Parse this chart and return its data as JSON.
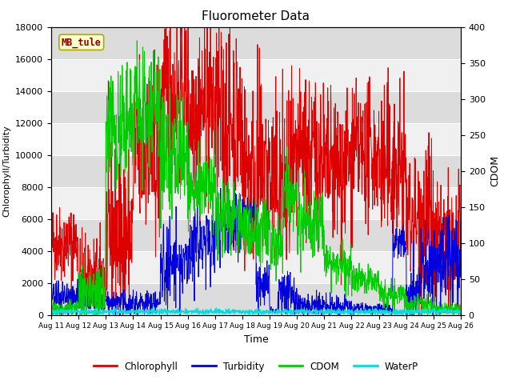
{
  "title": "Fluorometer Data",
  "xlabel": "Time",
  "ylabel_left": "Chlorophyll/Turbidity",
  "ylabel_right": "CDOM",
  "annotation": "MB_tule",
  "ylim_left": [
    0,
    18000
  ],
  "ylim_right": [
    0,
    400
  ],
  "x_tick_labels": [
    "Aug 11",
    "Aug 12",
    "Aug 13",
    "Aug 14",
    "Aug 15",
    "Aug 16",
    "Aug 17",
    "Aug 18",
    "Aug 19",
    "Aug 20",
    "Aug 21",
    "Aug 22",
    "Aug 23",
    "Aug 24",
    "Aug 25",
    "Aug 26"
  ],
  "colors": {
    "chlorophyll": "#dd0000",
    "turbidity": "#0000dd",
    "cdom": "#00cc00",
    "waterp": "#00dddd",
    "background_plot_light": "#f0f0f0",
    "background_plot_dark": "#dcdcdc",
    "background_fig": "#ffffff",
    "annotation_bg": "#ffffcc",
    "annotation_border": "#aaaa00",
    "annotation_text": "#880000",
    "grid_line": "#ffffff"
  },
  "legend": [
    "Chlorophyll",
    "Turbidity",
    "CDOM",
    "WaterP"
  ],
  "seed": 42
}
